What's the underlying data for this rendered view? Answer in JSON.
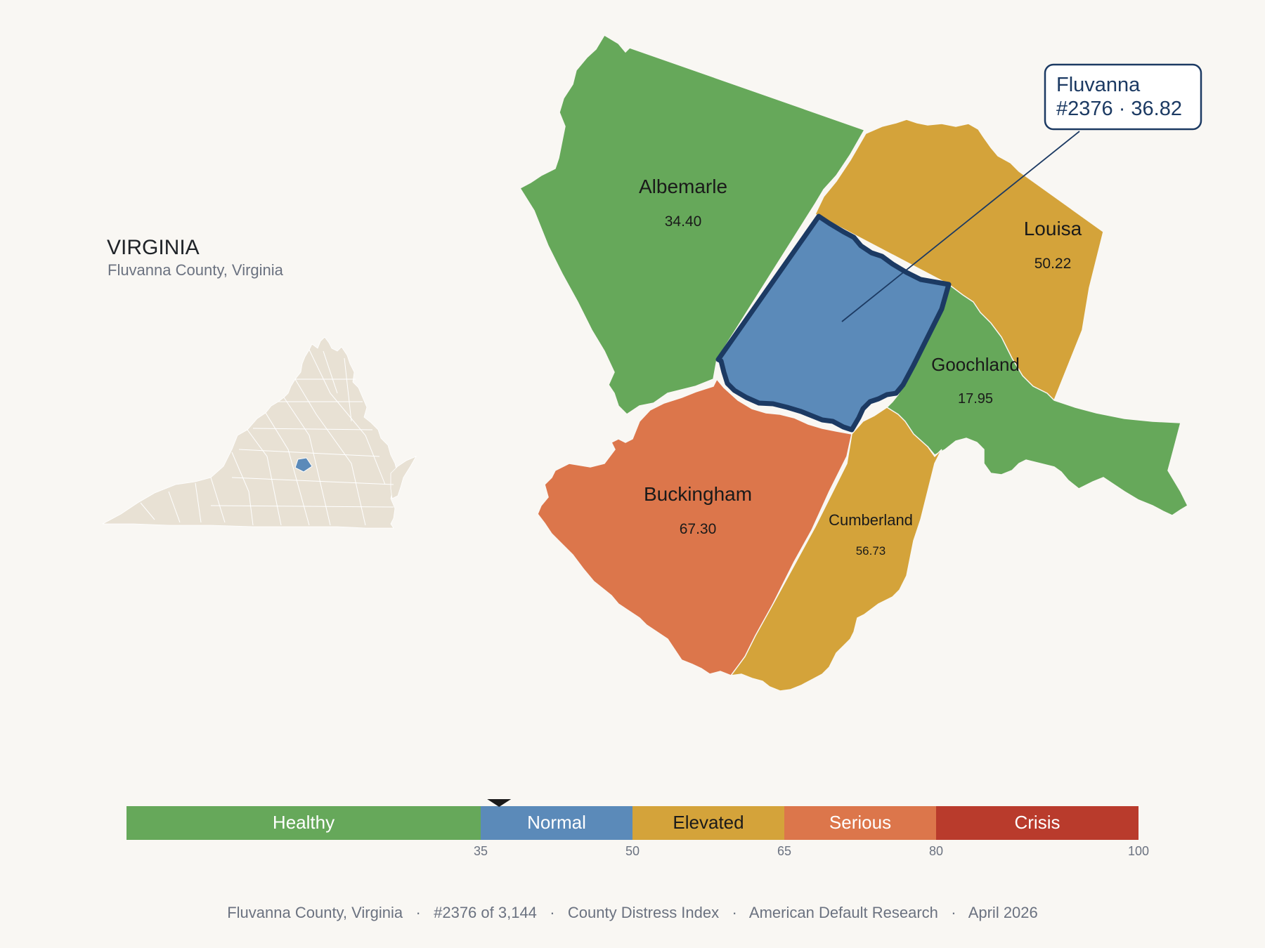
{
  "header": {
    "state_title": "VIRGINIA",
    "subtitle": "Fluvanna County, Virginia"
  },
  "colors": {
    "healthy": "#66a85a",
    "normal": "#5b8ab9",
    "elevated": "#d4a33a",
    "serious": "#dc764b",
    "crisis": "#b93b2c",
    "highlight_outline": "#1c3a63",
    "background": "#f9f7f3",
    "inset_fill": "#e8e1d4"
  },
  "focus_county": {
    "name": "Fluvanna",
    "rank": "#2376",
    "score": "36.82",
    "callout_line1": "Fluvanna",
    "callout_line2": "#2376 · 36.82",
    "category": "normal"
  },
  "neighbors": [
    {
      "id": "albemarle",
      "name": "Albemarle",
      "score": "34.40",
      "category": "healthy"
    },
    {
      "id": "louisa",
      "name": "Louisa",
      "score": "50.22",
      "category": "elevated"
    },
    {
      "id": "goochland",
      "name": "Goochland",
      "score": "17.95",
      "category": "healthy"
    },
    {
      "id": "buckingham",
      "name": "Buckingham",
      "score": "67.30",
      "category": "serious"
    },
    {
      "id": "cumberland",
      "name": "Cumberland",
      "score": "56.73",
      "category": "elevated"
    }
  ],
  "legend": {
    "min": 0,
    "max": 100,
    "marker_value": 36.82,
    "bands": [
      {
        "label": "Healthy",
        "from": 0,
        "to": 35,
        "color": "#66a85a",
        "text_color": "#ffffff"
      },
      {
        "label": "Normal",
        "from": 35,
        "to": 50,
        "color": "#5b8ab9",
        "text_color": "#ffffff"
      },
      {
        "label": "Elevated",
        "from": 50,
        "to": 65,
        "color": "#d4a33a",
        "text_color": "#1a1a1a"
      },
      {
        "label": "Serious",
        "from": 65,
        "to": 80,
        "color": "#dc764b",
        "text_color": "#ffffff"
      },
      {
        "label": "Crisis",
        "from": 80,
        "to": 100,
        "color": "#b93b2c",
        "text_color": "#ffffff"
      }
    ],
    "ticks": [
      "35",
      "50",
      "65",
      "80",
      "100"
    ]
  },
  "footer": {
    "text": "Fluvanna County, Virginia   ·   #2376 of 3,144   ·   County Distress Index   ·   American Default Research   ·   April 2026"
  }
}
